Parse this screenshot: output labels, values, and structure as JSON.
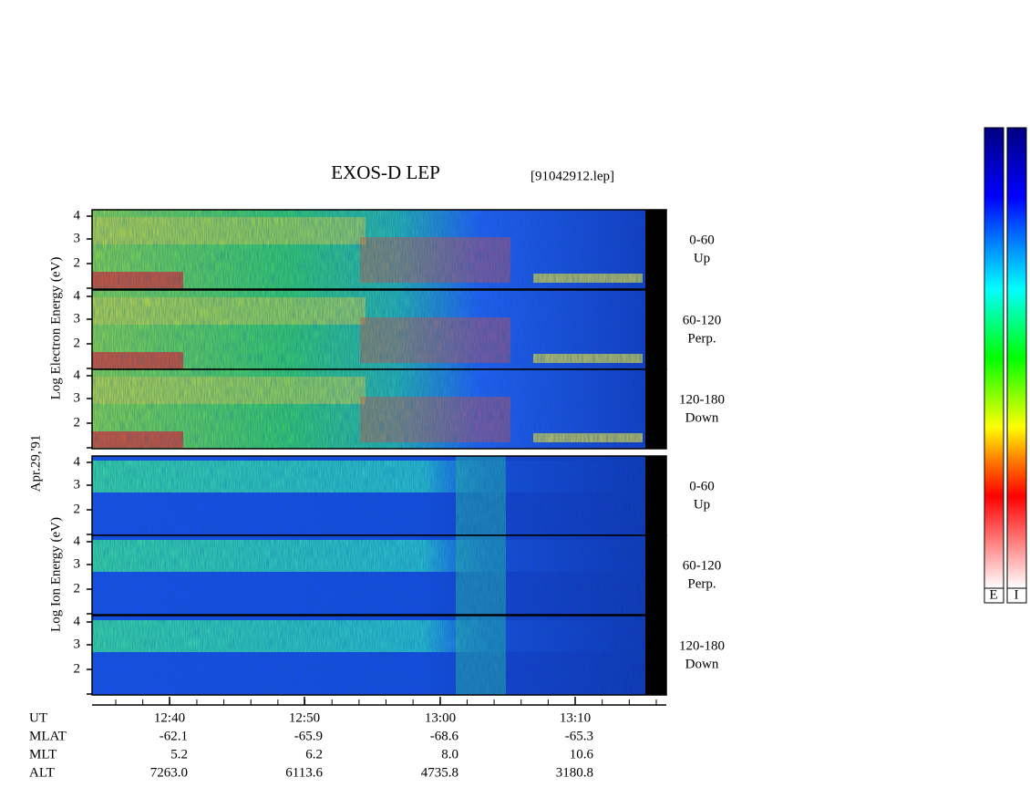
{
  "title": "EXOS-D LEP",
  "file": "[91042912.lep]",
  "electron_axis_label": "Log Electron Energy (eV)",
  "ion_axis_label": "Log Ion Energy (eV)",
  "date": "Apr.29,'91",
  "panels": [
    {
      "species": "electron",
      "ticks": [
        4,
        3,
        2
      ],
      "label": [
        "0-60",
        "Up"
      ]
    },
    {
      "species": "electron",
      "ticks": [
        4,
        3,
        2
      ],
      "label": [
        "60-120",
        "Perp."
      ]
    },
    {
      "species": "electron",
      "ticks": [
        4,
        3,
        2
      ],
      "label": [
        "120-180",
        "Down"
      ]
    },
    {
      "species": "ion",
      "ticks": [
        4,
        3,
        2
      ],
      "label": [
        "0-60",
        "Up"
      ]
    },
    {
      "species": "ion",
      "ticks": [
        4,
        3,
        2
      ],
      "label": [
        "60-120",
        "Perp."
      ]
    },
    {
      "species": "ion",
      "ticks": [
        4,
        3,
        2
      ],
      "label": [
        "120-180",
        "Down"
      ]
    }
  ],
  "time_axis": {
    "rows": [
      "UT",
      "MLAT",
      "MLT",
      "ALT"
    ],
    "columns": [
      [
        "12:40",
        "-62.1",
        "5.2",
        "7263.0"
      ],
      [
        "12:50",
        "-65.9",
        "6.2",
        "6113.6"
      ],
      [
        "13:00",
        "-68.6",
        "8.0",
        "4735.8"
      ],
      [
        "13:10",
        "-65.3",
        "10.6",
        "3180.8"
      ]
    ]
  },
  "colorbar_labels": [
    "E",
    "I"
  ]
}
